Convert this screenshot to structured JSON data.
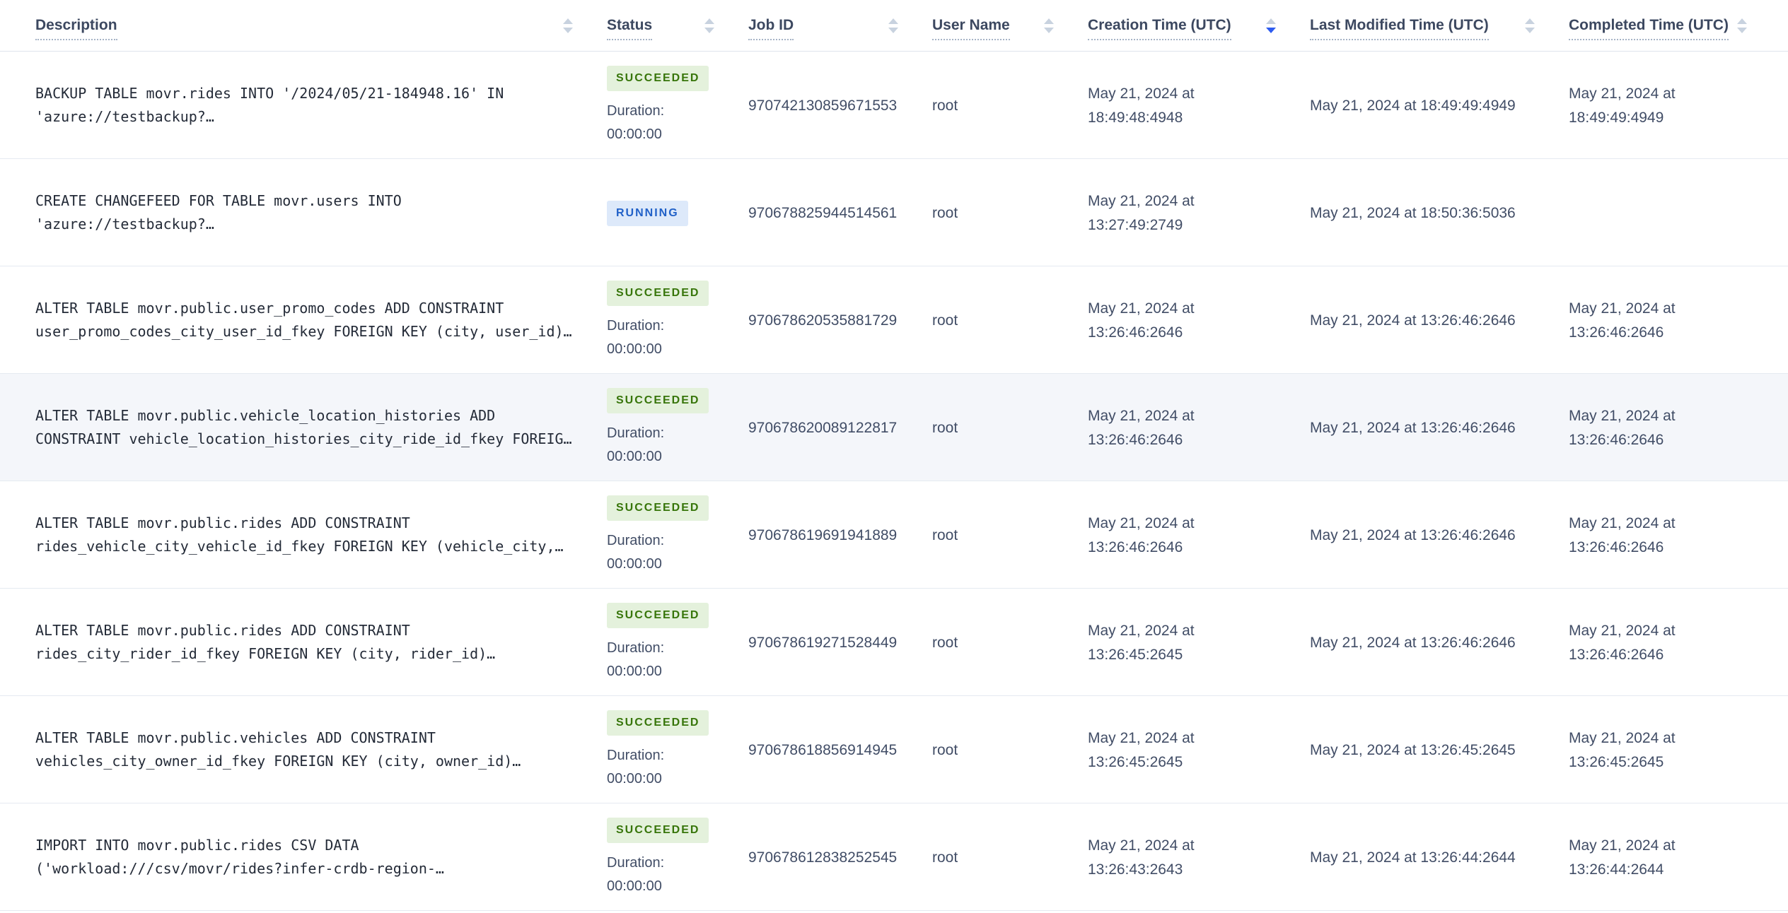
{
  "table": {
    "columns": [
      {
        "label": "Description",
        "sort": "none"
      },
      {
        "label": "Status",
        "sort": "none"
      },
      {
        "label": "Job ID",
        "sort": "none"
      },
      {
        "label": "User Name",
        "sort": "none"
      },
      {
        "label": "Creation Time (UTC)",
        "sort": "desc"
      },
      {
        "label": "Last Modified Time (UTC)",
        "sort": "none"
      },
      {
        "label": "Completed Time (UTC)",
        "sort": "none"
      }
    ],
    "duration_label": "Duration:",
    "duration_value": "00:00:00",
    "rows": [
      {
        "description": "BACKUP TABLE movr.rides INTO '/2024/05/21-184948.16' IN 'azure://testbackup?…",
        "status": "SUCCEEDED",
        "show_duration": true,
        "highlighted": false,
        "job_id": "970742130859671553",
        "user_name": "root",
        "creation_time": "May 21, 2024 at 18:49:48:4948",
        "last_modified_time": "May 21, 2024 at 18:49:49:4949",
        "completed_time": "May 21, 2024 at 18:49:49:4949"
      },
      {
        "description": "CREATE CHANGEFEED FOR TABLE movr.users INTO 'azure://testbackup?…",
        "status": "RUNNING",
        "show_duration": false,
        "highlighted": false,
        "job_id": "970678825944514561",
        "user_name": "root",
        "creation_time": "May 21, 2024 at 13:27:49:2749",
        "last_modified_time": "May 21, 2024 at 18:50:36:5036",
        "completed_time": ""
      },
      {
        "description": "ALTER TABLE movr.public.user_promo_codes ADD CONSTRAINT user_promo_codes_city_user_id_fkey FOREIGN KEY (city, user_id)…",
        "status": "SUCCEEDED",
        "show_duration": true,
        "highlighted": false,
        "job_id": "970678620535881729",
        "user_name": "root",
        "creation_time": "May 21, 2024 at 13:26:46:2646",
        "last_modified_time": "May 21, 2024 at 13:26:46:2646",
        "completed_time": "May 21, 2024 at 13:26:46:2646"
      },
      {
        "description": "ALTER TABLE movr.public.vehicle_location_histories ADD CONSTRAINT vehicle_location_histories_city_ride_id_fkey FOREIG…",
        "status": "SUCCEEDED",
        "show_duration": true,
        "highlighted": true,
        "job_id": "970678620089122817",
        "user_name": "root",
        "creation_time": "May 21, 2024 at 13:26:46:2646",
        "last_modified_time": "May 21, 2024 at 13:26:46:2646",
        "completed_time": "May 21, 2024 at 13:26:46:2646"
      },
      {
        "description": "ALTER TABLE movr.public.rides ADD CONSTRAINT rides_vehicle_city_vehicle_id_fkey FOREIGN KEY (vehicle_city,…",
        "status": "SUCCEEDED",
        "show_duration": true,
        "highlighted": false,
        "job_id": "970678619691941889",
        "user_name": "root",
        "creation_time": "May 21, 2024 at 13:26:46:2646",
        "last_modified_time": "May 21, 2024 at 13:26:46:2646",
        "completed_time": "May 21, 2024 at 13:26:46:2646"
      },
      {
        "description": "ALTER TABLE movr.public.rides ADD CONSTRAINT rides_city_rider_id_fkey FOREIGN KEY (city, rider_id)…",
        "status": "SUCCEEDED",
        "show_duration": true,
        "highlighted": false,
        "job_id": "970678619271528449",
        "user_name": "root",
        "creation_time": "May 21, 2024 at 13:26:45:2645",
        "last_modified_time": "May 21, 2024 at 13:26:46:2646",
        "completed_time": "May 21, 2024 at 13:26:46:2646"
      },
      {
        "description": "ALTER TABLE movr.public.vehicles ADD CONSTRAINT vehicles_city_owner_id_fkey FOREIGN KEY (city, owner_id)…",
        "status": "SUCCEEDED",
        "show_duration": true,
        "highlighted": false,
        "job_id": "970678618856914945",
        "user_name": "root",
        "creation_time": "May 21, 2024 at 13:26:45:2645",
        "last_modified_time": "May 21, 2024 at 13:26:45:2645",
        "completed_time": "May 21, 2024 at 13:26:45:2645"
      },
      {
        "description": "IMPORT INTO movr.public.rides CSV DATA ('workload:///csv/movr/rides?infer-crdb-region-…",
        "status": "SUCCEEDED",
        "show_duration": true,
        "highlighted": false,
        "job_id": "970678612838252545",
        "user_name": "root",
        "creation_time": "May 21, 2024 at 13:26:43:2643",
        "last_modified_time": "May 21, 2024 at 13:26:44:2644",
        "completed_time": "May 21, 2024 at 13:26:44:2644"
      }
    ]
  },
  "colors": {
    "succeeded_bg": "#e4f1dc",
    "succeeded_text": "#37750a",
    "running_bg": "#dde9fa",
    "running_text": "#2161c8",
    "sort_active": "#2e5cf0",
    "sort_inactive": "#c8d2df",
    "row_highlight": "#f4f6fa"
  }
}
